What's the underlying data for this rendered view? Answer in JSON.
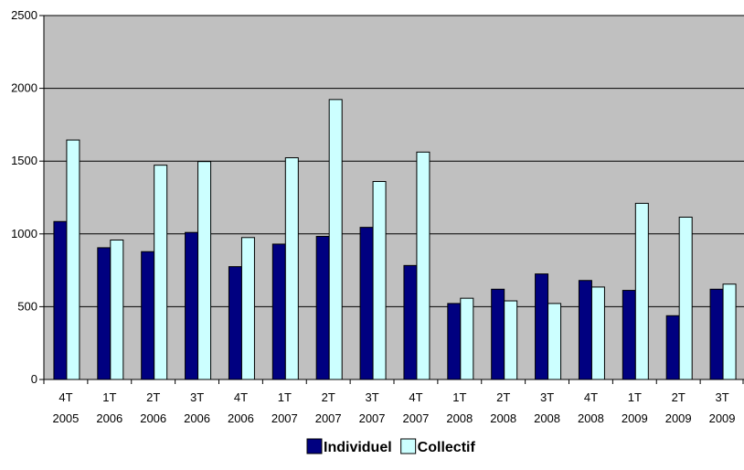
{
  "chart_data": {
    "type": "bar",
    "categories": [
      [
        "4T",
        "2005"
      ],
      [
        "1T",
        "2006"
      ],
      [
        "2T",
        "2006"
      ],
      [
        "3T",
        "2006"
      ],
      [
        "4T",
        "2006"
      ],
      [
        "1T",
        "2007"
      ],
      [
        "2T",
        "2007"
      ],
      [
        "3T",
        "2007"
      ],
      [
        "4T",
        "2007"
      ],
      [
        "1T",
        "2008"
      ],
      [
        "2T",
        "2008"
      ],
      [
        "3T",
        "2008"
      ],
      [
        "4T",
        "2008"
      ],
      [
        "1T",
        "2009"
      ],
      [
        "2T",
        "2009"
      ],
      [
        "3T",
        "2009"
      ]
    ],
    "series": [
      {
        "name": "Individuel",
        "color": "#000080",
        "values": [
          1085,
          905,
          878,
          1010,
          775,
          930,
          983,
          1045,
          783,
          522,
          620,
          725,
          680,
          612,
          438,
          620
        ]
      },
      {
        "name": "Collectif",
        "color": "#ccffff",
        "values": [
          1645,
          958,
          1472,
          1497,
          975,
          1523,
          1923,
          1360,
          1562,
          558,
          540,
          522,
          635,
          1210,
          1115,
          655
        ]
      }
    ],
    "y_ticks": [
      "0",
      "500",
      "1000",
      "1500",
      "2000",
      "2500"
    ],
    "ylim": [
      0,
      2500
    ],
    "plot_background": "#c0c0c0",
    "grid": true,
    "legend_position": "bottom-center"
  }
}
